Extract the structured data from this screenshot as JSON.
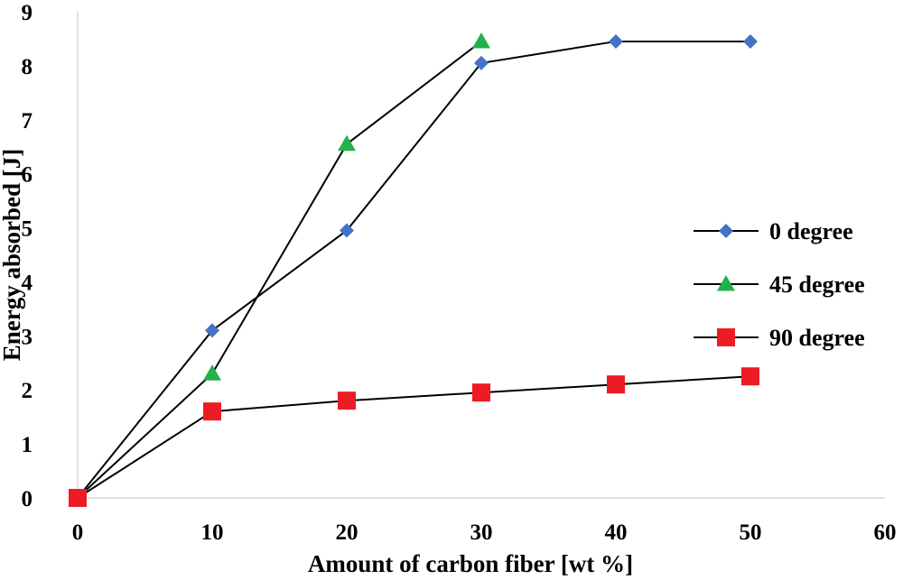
{
  "chart_data": {
    "type": "line",
    "title": "",
    "xlabel": "Amount of carbon fiber [wt %]",
    "ylabel": "Energy absorbed [J]",
    "xlim": [
      0,
      60
    ],
    "ylim": [
      0,
      9
    ],
    "xticks": [
      0,
      10,
      20,
      30,
      40,
      50,
      60
    ],
    "yticks": [
      0,
      1,
      2,
      3,
      4,
      5,
      6,
      7,
      8,
      9
    ],
    "grid": false,
    "legend_position": "right",
    "series": [
      {
        "name": "0 degree",
        "marker": "diamond",
        "color": "#4472c4",
        "x": [
          0,
          10,
          20,
          30,
          40,
          50
        ],
        "y": [
          0,
          3.1,
          4.95,
          8.05,
          8.45,
          8.45
        ]
      },
      {
        "name": "45 degree",
        "marker": "triangle",
        "color": "#22b14c",
        "x": [
          0,
          10,
          20,
          30
        ],
        "y": [
          0,
          2.3,
          6.55,
          8.45
        ]
      },
      {
        "name": "90 degree",
        "marker": "square",
        "color": "#ed1c24",
        "x": [
          0,
          10,
          20,
          30,
          40,
          50
        ],
        "y": [
          0,
          1.6,
          1.8,
          1.95,
          2.1,
          2.25
        ]
      }
    ]
  }
}
